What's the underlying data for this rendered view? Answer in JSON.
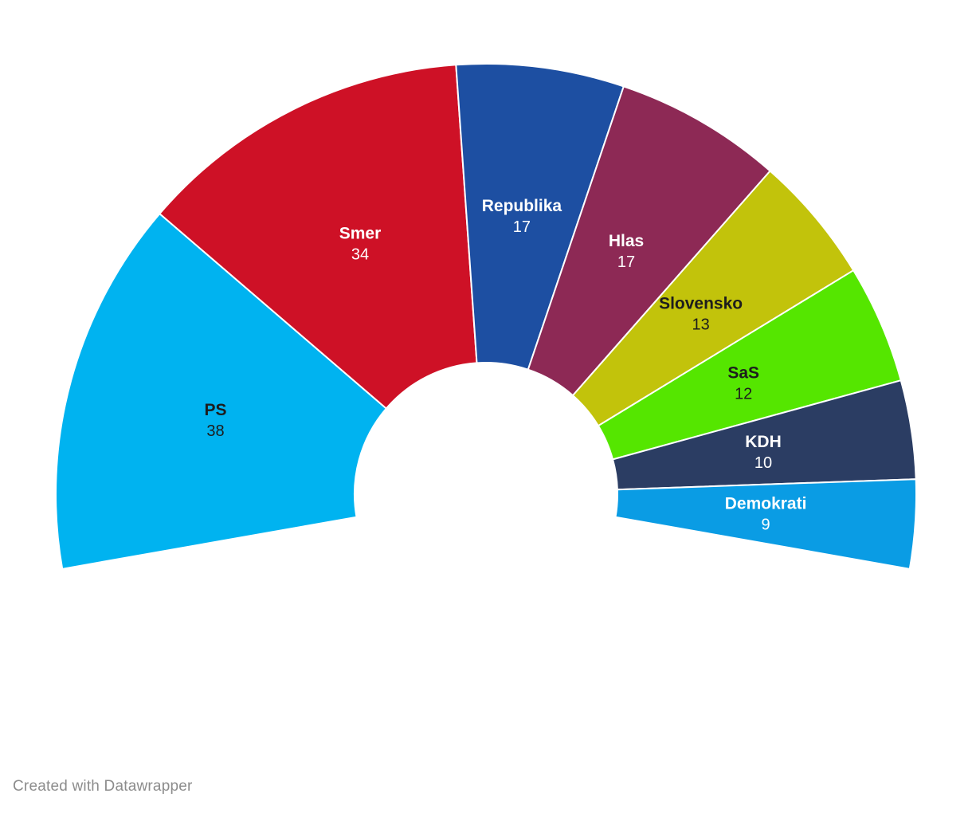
{
  "page": {
    "background": "#ffffff"
  },
  "chart_data": {
    "type": "pie",
    "subtype": "half-donut-parliament",
    "title": "",
    "total_seats": 150,
    "arc_degrees": 200,
    "inner_radius_ratio": 0.31,
    "grid": false,
    "legend_position": "labels-inside-slices",
    "series": [
      {
        "label": "PS",
        "value": 38,
        "color": "#00b3f0",
        "label_color": "#1d1d1d"
      },
      {
        "label": "Smer",
        "value": 34,
        "color": "#ce1126",
        "label_color": "#ffffff"
      },
      {
        "label": "Republika",
        "value": 17,
        "color": "#1d4fa2",
        "label_color": "#ffffff"
      },
      {
        "label": "Hlas",
        "value": 17,
        "color": "#8d2955",
        "label_color": "#ffffff"
      },
      {
        "label": "Slovensko",
        "value": 13,
        "color": "#c2c30b",
        "label_color": "#1d1d1d"
      },
      {
        "label": "SaS",
        "value": 12,
        "color": "#55e600",
        "label_color": "#1d1d1d"
      },
      {
        "label": "KDH",
        "value": 10,
        "color": "#2b3d63",
        "label_color": "#ffffff"
      },
      {
        "label": "Demokrati",
        "value": 9,
        "color": "#0a9ce4",
        "label_color": "#ffffff"
      }
    ]
  },
  "footer": {
    "credit": "Created with Datawrapper",
    "color": "#8c8c8c"
  }
}
